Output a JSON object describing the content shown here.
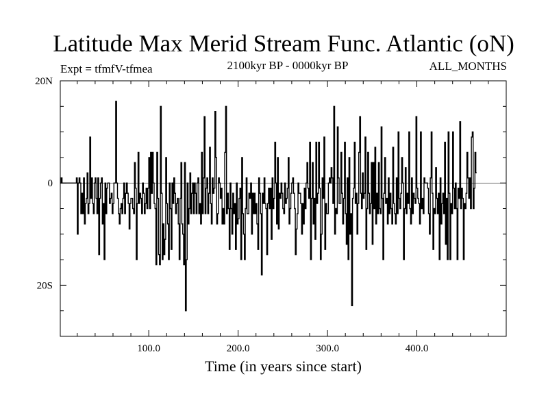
{
  "chart_data": {
    "type": "line",
    "title": "Latitude Max Merid Stream Func. Atlantic (oN)",
    "subtitle_left": "Expt = tfmfV-tfmea",
    "subtitle_center": "2100kyr BP - 0000kyr BP",
    "subtitle_right": "ALL_MONTHS",
    "xlabel": "Time (in years since start)",
    "ylabel": "",
    "xlim": [
      1,
      500
    ],
    "ylim": [
      -30,
      20
    ],
    "x_ticks": [
      {
        "value": 100,
        "label": "100.0"
      },
      {
        "value": 200,
        "label": "200.0"
      },
      {
        "value": 300,
        "label": "300.0"
      },
      {
        "value": 400,
        "label": "400.0"
      }
    ],
    "y_ticks": [
      {
        "value": 20,
        "label": "20N"
      },
      {
        "value": 0,
        "label": "0"
      },
      {
        "value": -20,
        "label": "20S"
      }
    ],
    "zero_line": true,
    "grid": false,
    "series": [
      {
        "color": "#000000",
        "x_start": 1,
        "x_step": 1,
        "values": [
          0,
          1,
          0,
          0,
          0,
          0,
          0,
          0,
          0,
          0,
          0,
          0,
          0,
          0,
          0,
          0,
          0,
          0,
          1,
          -10,
          0,
          1,
          0,
          -6,
          -2,
          -6,
          1,
          -8,
          -4,
          -3,
          2,
          -6,
          -4,
          9,
          -3,
          1,
          -4,
          -6,
          0,
          1,
          -3,
          -6,
          1,
          -14,
          -3,
          0,
          1,
          -8,
          -4,
          -15,
          0,
          -6,
          -1,
          0,
          0,
          -4,
          -3,
          -2,
          -6,
          -4,
          0,
          0,
          16,
          0,
          -3,
          -6,
          -8,
          -5,
          -4,
          -6,
          -3,
          0,
          -6,
          -2,
          0,
          -2,
          -4,
          -9,
          -4,
          -3,
          -3,
          -5,
          -6,
          4,
          -1,
          -15,
          -4,
          6,
          -4,
          -2,
          -3,
          -6,
          0,
          -2,
          -6,
          -4,
          -1,
          -5,
          -1,
          5,
          -5,
          6,
          -2,
          6,
          0,
          -4,
          -5,
          -16,
          6,
          -3,
          -14,
          -16,
          15,
          -2,
          -15,
          -8,
          -14,
          -11,
          5,
          -4,
          -8,
          -15,
          0,
          -5,
          -13,
          0,
          -4,
          1,
          -2,
          -6,
          -4,
          -3,
          -8,
          -15,
          -3,
          4,
          -8,
          -10,
          -16,
          4,
          -25,
          -15,
          0,
          -8,
          -5,
          2,
          -6,
          -2,
          0,
          -6,
          0,
          -2,
          -6,
          0,
          1,
          -6,
          -4,
          -8,
          6,
          -6,
          1,
          13,
          -6,
          -1,
          1,
          -6,
          -2,
          7,
          -4,
          -8,
          1,
          -2,
          -1,
          14,
          5,
          -8,
          -6,
          1,
          0,
          -3,
          -1,
          -8,
          -5,
          -8,
          6,
          15,
          -6,
          -2,
          -5,
          -13,
          0,
          -5,
          -10,
          -2,
          -6,
          -4,
          -13,
          0,
          -8,
          -7,
          -3,
          -1,
          -15,
          5,
          -6,
          -10,
          -15,
          -5,
          1,
          -6,
          -6,
          -2,
          -3,
          0,
          -10,
          -2,
          -6,
          -2,
          -6,
          -4,
          -8,
          -13,
          1,
          -2,
          -6,
          -18,
          -2,
          -4,
          1,
          -4,
          -5,
          -14,
          -4,
          -1,
          -5,
          -1,
          -11,
          1,
          -5,
          -3,
          8,
          0,
          -8,
          5,
          -9,
          -2,
          -3,
          0,
          -2,
          -5,
          -6,
          0,
          -4,
          -3,
          -1,
          5,
          -8,
          -5,
          -2,
          0,
          1,
          -2,
          -5,
          -14,
          -9,
          -6,
          0,
          -2,
          -2,
          -4,
          -10,
          -4,
          -8,
          -1,
          -5,
          0,
          4,
          -1,
          -3,
          8,
          -15,
          -3,
          4,
          -8,
          -3,
          -11,
          8,
          -4,
          -2,
          8,
          -1,
          -15,
          -10,
          1,
          -3,
          9,
          -13,
          -4,
          -6,
          -6,
          0,
          1,
          0,
          3,
          1,
          -4,
          15,
          -10,
          -5,
          -6,
          11,
          1,
          -4,
          -4,
          6,
          -2,
          -8,
          -3,
          8,
          -6,
          -12,
          1,
          -15,
          5,
          -10,
          -6,
          -24,
          -3,
          -1,
          8,
          -4,
          -2,
          -10,
          -4,
          6,
          13,
          -2,
          -5,
          2,
          -3,
          -2,
          9,
          -13,
          -5,
          6,
          -2,
          -6,
          -4,
          4,
          -12,
          4,
          -5,
          7,
          -8,
          -2,
          -6,
          4,
          -5,
          -6,
          11,
          -3,
          -15,
          -2,
          5,
          -4,
          -3,
          -8,
          1,
          -6,
          -2,
          -5,
          -8,
          7,
          -4,
          -6,
          -8,
          1,
          -6,
          10,
          -3,
          -5,
          -2,
          5,
          0,
          -15,
          -5,
          3,
          -6,
          -2,
          -4,
          10,
          -5,
          -8,
          1,
          -6,
          -2,
          -3,
          -4,
          13,
          -1,
          -3,
          -4,
          -8,
          10,
          -5,
          -3,
          -6,
          1,
          0,
          0,
          0,
          -1,
          -6,
          -10,
          1,
          10,
          -2,
          -13,
          -5,
          -6,
          3,
          -3,
          -6,
          -2,
          -15,
          1,
          -8,
          -4,
          -2,
          -6,
          8,
          -12,
          -3,
          -15,
          10,
          -2,
          -15,
          -4,
          -6,
          10,
          -1,
          -5,
          0,
          -5,
          -15,
          -1,
          -3,
          12,
          -5,
          -1,
          -3,
          -15,
          -4,
          -5,
          -2,
          6,
          1,
          -3,
          1,
          -5,
          9,
          10,
          -5,
          -1,
          6,
          2
        ]
      }
    ]
  }
}
